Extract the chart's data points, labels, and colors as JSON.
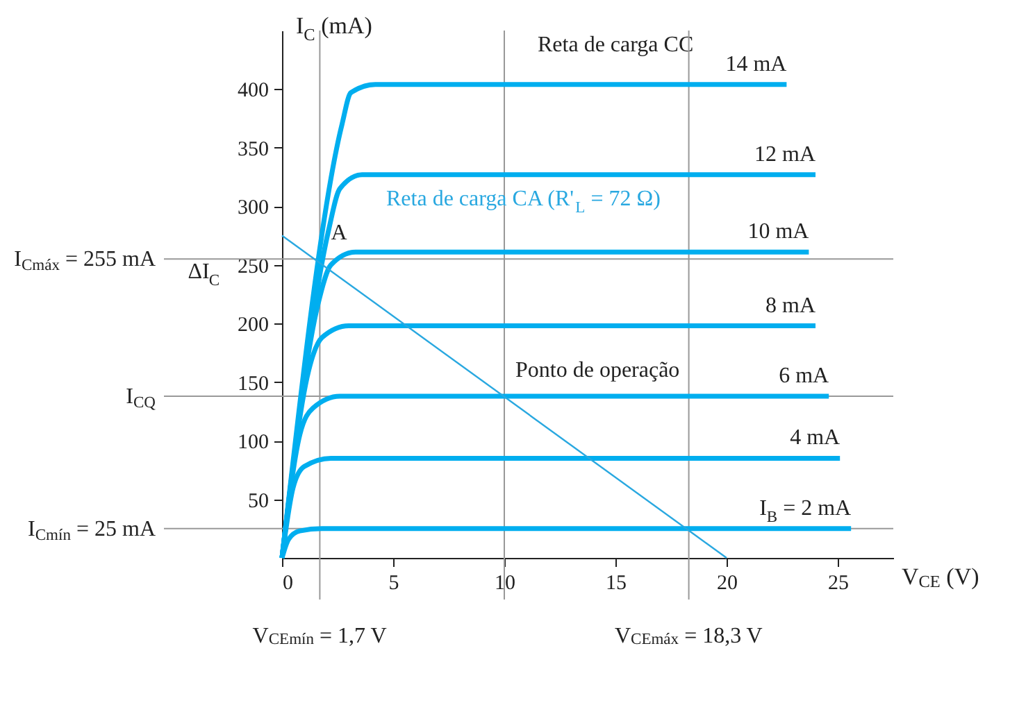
{
  "chart_data": {
    "type": "line",
    "xlabel": "V$_{CE}$ (V)",
    "ylabel": "I$_{C}$ (mA)",
    "xlim": [
      0,
      27.5
    ],
    "ylim": [
      0,
      450
    ],
    "xticks": [
      0,
      5,
      10,
      15,
      20,
      25
    ],
    "yticks": [
      50,
      100,
      150,
      200,
      250,
      300,
      350,
      400
    ],
    "grid": false,
    "legend": false,
    "marker": "none",
    "line_style": "solid",
    "series": [
      {
        "name": "I$_{B}$ = 2 mA",
        "color": "#00aeef",
        "x": [
          0,
          0.3,
          0.8,
          1.8,
          25.6
        ],
        "values": [
          0,
          16,
          23,
          25,
          25
        ]
      },
      {
        "name": "4 mA",
        "color": "#00aeef",
        "x": [
          0,
          0.5,
          1,
          2.2,
          25.1
        ],
        "values": [
          0,
          60,
          78,
          85,
          85
        ]
      },
      {
        "name": "6 mA",
        "color": "#00aeef",
        "x": [
          0,
          0.8,
          1.4,
          2.6,
          24.6
        ],
        "values": [
          0,
          105,
          128,
          138,
          138
        ]
      },
      {
        "name": "8 mA",
        "color": "#00aeef",
        "x": [
          0,
          1.2,
          1.8,
          3,
          24
        ],
        "values": [
          0,
          160,
          188,
          198,
          198
        ]
      },
      {
        "name": "10 mA",
        "color": "#00aeef",
        "x": [
          0,
          1.6,
          2.2,
          3.3,
          23.7
        ],
        "values": [
          0,
          215,
          250,
          261,
          261
        ]
      },
      {
        "name": "12 mA",
        "color": "#00aeef",
        "x": [
          0,
          2.1,
          2.6,
          3.6,
          24
        ],
        "values": [
          0,
          280,
          315,
          327,
          327
        ]
      },
      {
        "name": "14 mA",
        "color": "#00aeef",
        "x": [
          0,
          2.7,
          3.1,
          4.2,
          22.7
        ],
        "values": [
          0,
          370,
          397,
          404,
          404
        ]
      },
      {
        "name": "Reta de carga CA (R'$_{L}$ = 72 Ω)",
        "color": "#29a8e0",
        "x": [
          0,
          20
        ],
        "values": [
          275,
          0
        ]
      }
    ],
    "ref_lines": [
      {
        "axis": "x",
        "value": 10,
        "label": "Reta de carga CC",
        "color": "#999999"
      },
      {
        "axis": "y",
        "value": 255,
        "label": "I$_{Cmáx}$ = 255 mA",
        "color": "#999999"
      },
      {
        "axis": "y",
        "value": 138,
        "label": "I$_{CQ}$",
        "color": "#999999"
      },
      {
        "axis": "y",
        "value": 25,
        "label": "I$_{Cmín}$ = 25 mA",
        "color": "#999999"
      },
      {
        "axis": "x",
        "value": 1.7,
        "label": "V$_{CEmín}$ = 1,7 V",
        "color": "#999999"
      },
      {
        "axis": "x",
        "value": 18.3,
        "label": "V$_{CEmáx}$ = 18,3 V",
        "color": "#999999"
      }
    ],
    "annotations": [
      {
        "text": "A",
        "x": 1.7,
        "y": 255
      },
      {
        "text": "Ponto de operação",
        "x": 10,
        "y": 138
      },
      "ΔI$_{C}$"
    ]
  }
}
